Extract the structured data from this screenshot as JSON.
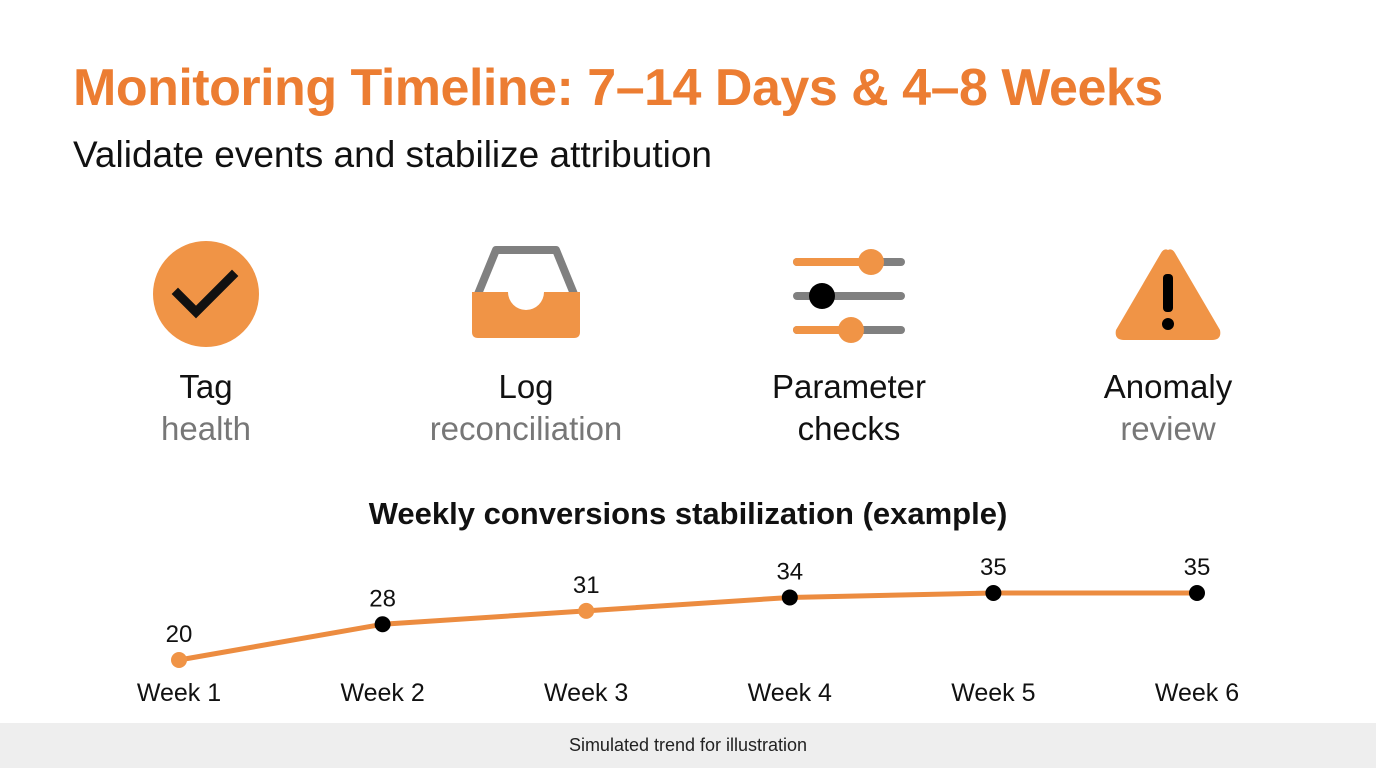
{
  "header": {
    "title": "Monitoring Timeline: 7–14 Days & 4–8 Weeks",
    "subtitle": "Validate events and stabilize attribution"
  },
  "cards": [
    {
      "icon": "check-circle-icon",
      "line1": "Tag",
      "line2": "health"
    },
    {
      "icon": "inbox-tray-icon",
      "line1": "Log",
      "line2": "reconciliation"
    },
    {
      "icon": "sliders-icon",
      "line1": "Parameter",
      "line2": "checks"
    },
    {
      "icon": "warning-triangle-icon",
      "line1": "Anomaly",
      "line2": "review"
    }
  ],
  "colors": {
    "accent": "#ec7d32",
    "icon_orange": "#f09446",
    "icon_gray": "#808080",
    "text": "#111111",
    "muted": "#777777",
    "footer_bg": "#eeeeee"
  },
  "chart_data": {
    "type": "line",
    "title": "Weekly conversions stabilization (example)",
    "categories": [
      "Week 1",
      "Week 2",
      "Week 3",
      "Week 4",
      "Week 5",
      "Week 6"
    ],
    "values": [
      20,
      28,
      31,
      34,
      35,
      35
    ],
    "data_labels": [
      "20",
      "28",
      "31",
      "34",
      "35",
      "35"
    ],
    "marker_colors": [
      "#f09446",
      "#000000",
      "#f09446",
      "#000000",
      "#000000",
      "#000000"
    ],
    "line_color": "#ec8c40",
    "xlabel": "",
    "ylabel": "",
    "grid": false,
    "legend": "none"
  },
  "footer": {
    "note": "Simulated trend for illustration"
  }
}
